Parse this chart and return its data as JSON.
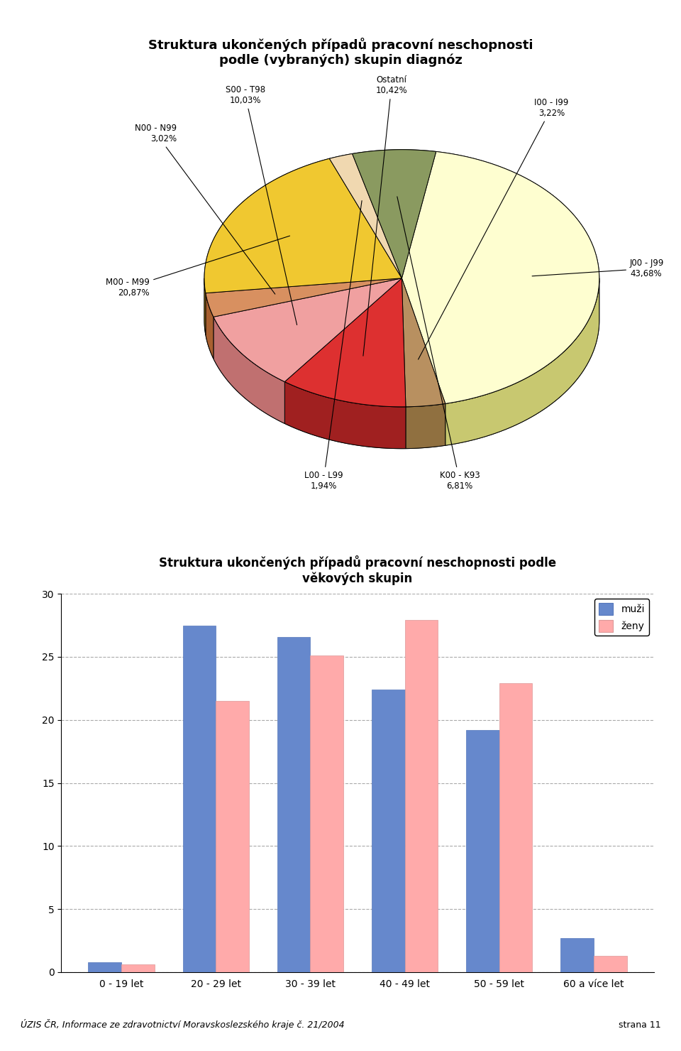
{
  "pie_title": "Struktura ukončených případů pracovní neschopnosti\npodle (vybraných) skupin diagnóz",
  "pie_labels": [
    "J00 - J99",
    "I00 - I99",
    "Ostatní",
    "S00 - T98",
    "N00 - N99",
    "M00 - M99",
    "L00 - L99",
    "K00 - K93"
  ],
  "pie_values": [
    43.68,
    3.22,
    10.42,
    10.03,
    3.02,
    20.87,
    1.94,
    6.81
  ],
  "pie_colors_top": [
    "#FEFED0",
    "#B89060",
    "#DD3030",
    "#F0A0A0",
    "#D89060",
    "#F0C830",
    "#F0D8B0",
    "#8A9A60"
  ],
  "pie_colors_side": [
    "#C8C870",
    "#907040",
    "#A02020",
    "#C07070",
    "#A86030",
    "#C09820",
    "#C0A870",
    "#606830"
  ],
  "bar_title": "Struktura ukončených případů pracovní neschopnosti podle\nvěkových skupin",
  "bar_categories": [
    "0 - 19 let",
    "20 - 29 let",
    "30 - 39 let",
    "40 - 49 let",
    "50 - 59 let",
    "60 a více let"
  ],
  "muzi": [
    0.8,
    27.5,
    26.6,
    22.4,
    19.2,
    2.7
  ],
  "zeny": [
    0.6,
    21.5,
    25.1,
    27.9,
    22.9,
    1.3
  ],
  "muzi_color": "#6688CC",
  "zeny_color": "#FFAAAA",
  "bar_ylim": [
    0,
    30
  ],
  "bar_yticks": [
    0,
    5,
    10,
    15,
    20,
    25,
    30
  ],
  "footer_text": "ÚZIS ČR, Informace ze zdravotnictví Moravskoslezského kraje č. 21/2004",
  "footer_right": "strana 11",
  "background_color": "#FFFFFF",
  "label_positions": {
    "J00 - J99": [
      0.78,
      0.08,
      "J00 - J99\n43,68%"
    ],
    "I00 - I99": [
      0.58,
      0.72,
      "I00 - I99\n3,22%"
    ],
    "Ostatní": [
      0.22,
      0.78,
      "Ostatní\n10,42%"
    ],
    "S00 - T98": [
      -0.12,
      0.72,
      "S00 - T98\n10,03%"
    ],
    "N00 - N99": [
      -0.38,
      0.55,
      "N00 - N99\n3,02%"
    ],
    "M00 - M99": [
      -0.42,
      0.1,
      "M00 - M99\n20,87%"
    ],
    "L00 - L99": [
      0.1,
      -0.52,
      "L00 - L99\n1,94%"
    ],
    "K00 - K93": [
      0.38,
      -0.52,
      "K00 - K93\n6,81%"
    ]
  }
}
